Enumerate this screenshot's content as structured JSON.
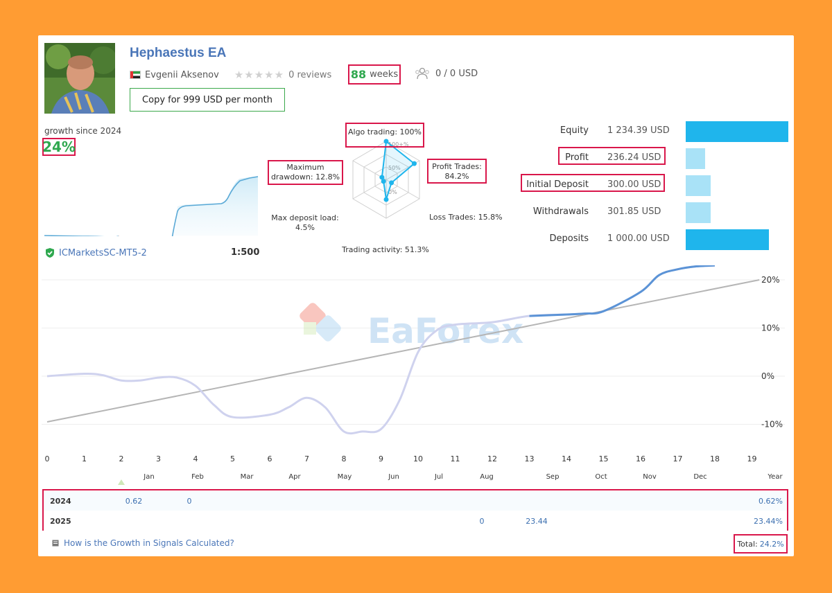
{
  "profile": {
    "title": "Hephaestus EA",
    "author": "Evgenii Aksenov",
    "reviews": "0 reviews",
    "weeks_number": "88",
    "weeks_label": "weeks",
    "subscribers": "0 / 0 USD",
    "copy_button": "Copy for 999 USD per month"
  },
  "growth": {
    "label": "growth since 2024",
    "value": "24%"
  },
  "account": {
    "broker": "ICMarketsSC-MT5-2",
    "leverage": "1:500"
  },
  "radar": {
    "ring_labels": [
      "100+%",
      "50%",
      "0%"
    ],
    "axes": [
      {
        "label": "Algo trading: 100%",
        "value": 100
      },
      {
        "label": "Profit Trades: 84.2%",
        "value": 84.2
      },
      {
        "label": "Loss Trades: 15.8%",
        "value": 15.8
      },
      {
        "label": "Trading activity: 51.3%",
        "value": 51.3
      },
      {
        "label": "Max deposit load: 4.5%",
        "value": 4.5
      },
      {
        "label": "Maximum drawdown: 12.8%",
        "value": 12.8
      }
    ]
  },
  "stats": [
    {
      "label": "Equity",
      "value": "1 234.39 USD",
      "amount": 1234.39,
      "highlight": false
    },
    {
      "label": "Profit",
      "value": "236.24 USD",
      "amount": 236.24,
      "highlight": true
    },
    {
      "label": "Initial Deposit",
      "value": "300.00 USD",
      "amount": 300.0,
      "highlight": true
    },
    {
      "label": "Withdrawals",
      "value": "301.85 USD",
      "amount": 301.85,
      "highlight": false
    },
    {
      "label": "Deposits",
      "value": "1 000.00 USD",
      "amount": 1000.0,
      "highlight": false
    }
  ],
  "colors": {
    "accent_blue": "#1fb5ec",
    "light_blue": "#a9e2f7",
    "highlight_red": "#d9164a",
    "positive_green": "#2fa84f",
    "negative_red": "#e0552a"
  },
  "watermark": "EaForex",
  "chart_data": {
    "type": "line",
    "x": [
      0,
      1,
      2,
      3,
      4,
      5,
      6,
      7,
      8,
      9,
      10,
      11,
      12,
      13,
      14,
      15,
      16,
      17,
      18,
      19
    ],
    "x_ticks": [
      "0",
      "1",
      "2",
      "3",
      "4",
      "5",
      "6",
      "7",
      "8",
      "9",
      "10",
      "11",
      "12",
      "13",
      "14",
      "15",
      "16",
      "17",
      "18",
      "19"
    ],
    "month_ticks": [
      "Jan",
      "Feb",
      "Mar",
      "Apr",
      "May",
      "Jun",
      "Jul",
      "Aug",
      "Sep",
      "Oct",
      "Nov",
      "Dec",
      "Year"
    ],
    "y_ticks": [
      "20%",
      "10%",
      "0%",
      "-10%"
    ],
    "ylim": [
      -15,
      23
    ],
    "series": [
      {
        "points": [
          [
            0,
            0
          ],
          [
            1,
            0.5
          ],
          [
            1.5,
            0.2
          ],
          [
            2,
            -0.9
          ],
          [
            2.5,
            -0.9
          ],
          [
            3,
            -0.3
          ],
          [
            3.5,
            -0.3
          ],
          [
            4,
            -2
          ],
          [
            4.5,
            -6
          ],
          [
            5,
            -8.5
          ],
          [
            6,
            -8
          ],
          [
            6.5,
            -6.5
          ],
          [
            7,
            -4.5
          ],
          [
            7.5,
            -6.5
          ],
          [
            8,
            -11.5
          ],
          [
            8.5,
            -11.5
          ],
          [
            9,
            -11
          ],
          [
            9.5,
            -5
          ],
          [
            10,
            5
          ],
          [
            10.5,
            9.5
          ],
          [
            11,
            10.7
          ],
          [
            12,
            11.2
          ],
          [
            13,
            12.5
          ],
          [
            14,
            12.8
          ],
          [
            14.5,
            13
          ],
          [
            15,
            13.5
          ],
          [
            16,
            17.5
          ],
          [
            16.5,
            21
          ],
          [
            17,
            22.2
          ],
          [
            17.5,
            22.8
          ],
          [
            18,
            23
          ]
        ]
      },
      {
        "points": [
          [
            0,
            -9.5
          ],
          [
            19.2,
            20
          ]
        ]
      }
    ],
    "mini_growth": [
      0,
      0.3,
      0.1,
      -0.8,
      -2.5,
      -3.2,
      -2.9,
      -4.2,
      6,
      15,
      15.4,
      15.6,
      16.3,
      22.5,
      24
    ],
    "years": [
      {
        "year": "2024",
        "months": [
          {
            "col": "Jan",
            "value": "0.62"
          },
          {
            "col": "Feb",
            "value": "0"
          }
        ],
        "total": "0.62%"
      },
      {
        "year": "2025",
        "months": [
          {
            "col": "Aug",
            "value": "0"
          },
          {
            "col": "Sep",
            "value": "23.44"
          }
        ],
        "total": "23.44%"
      }
    ]
  },
  "footer": {
    "help_link": "How is the Growth in Signals Calculated?",
    "total_label": "Total:",
    "total_value": "24.2%"
  }
}
